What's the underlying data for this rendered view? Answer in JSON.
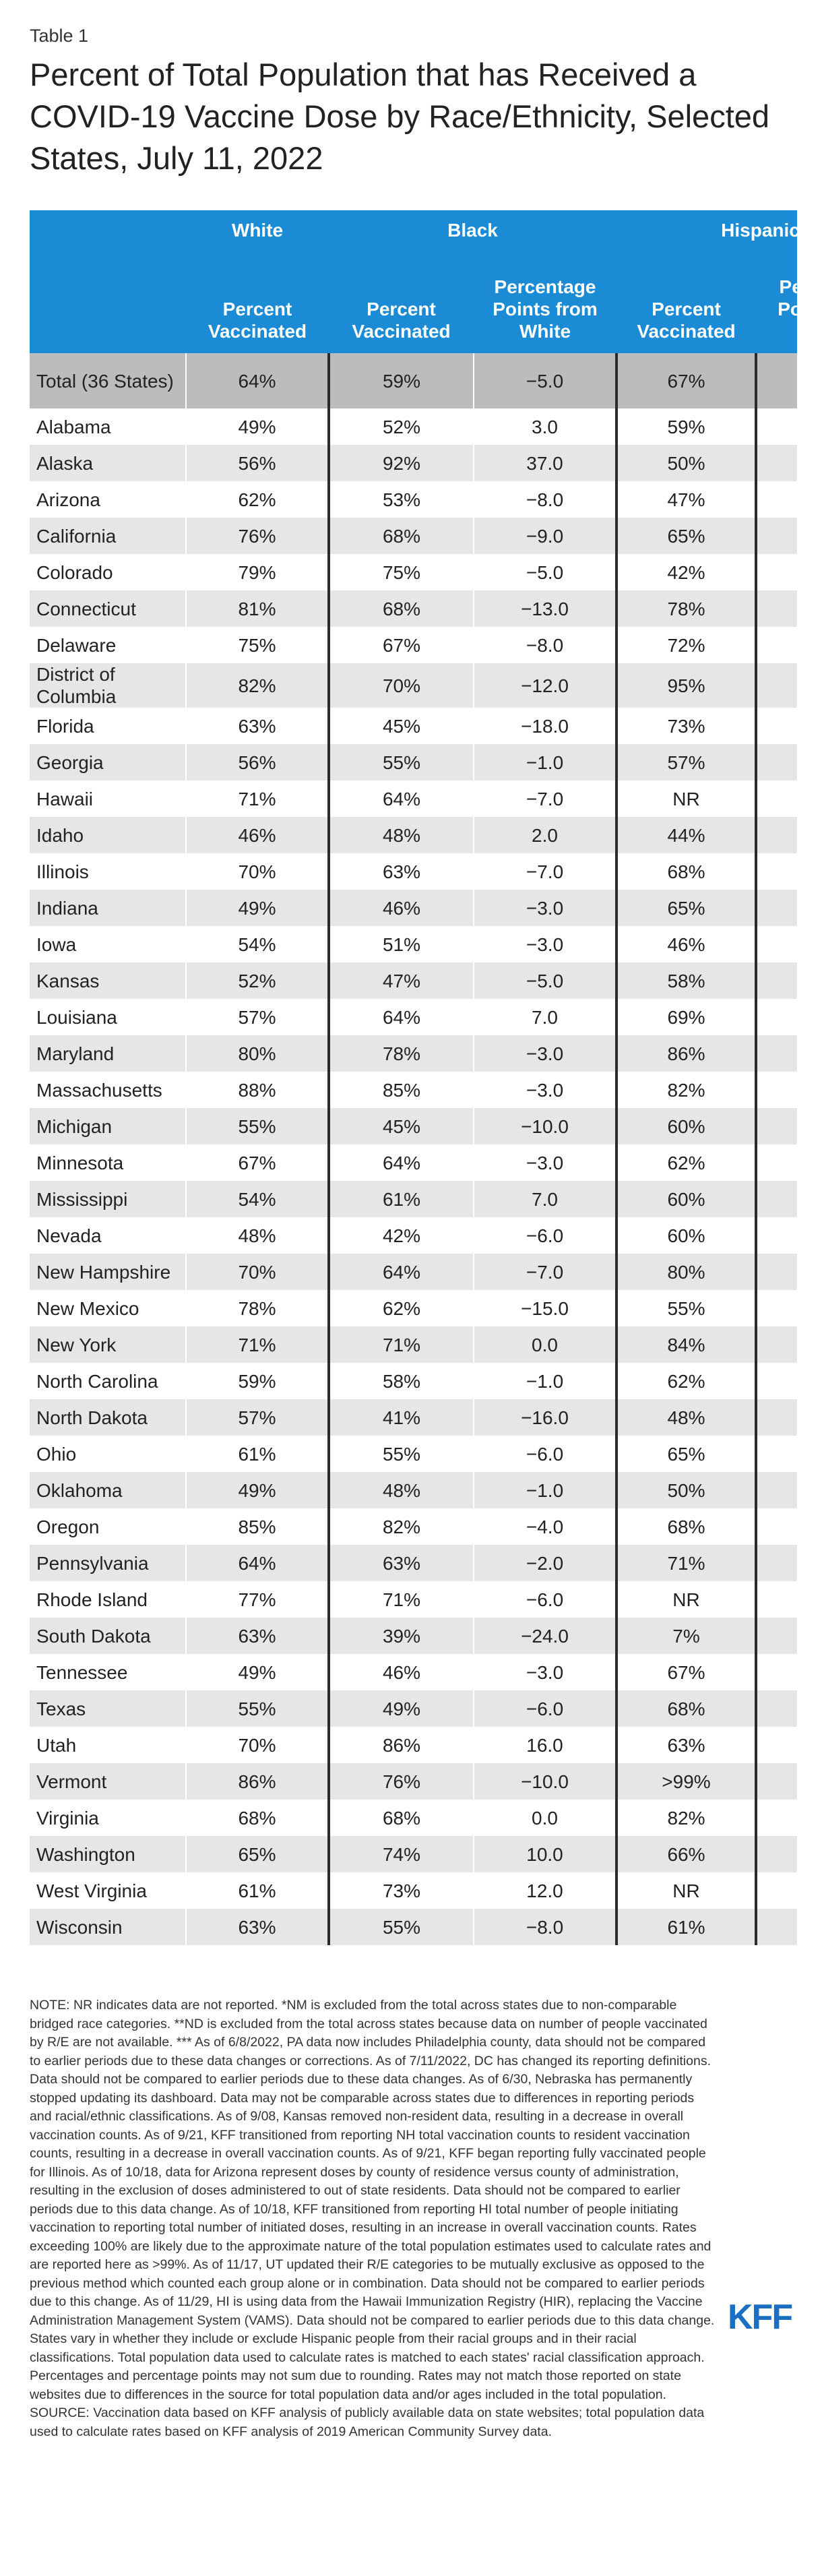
{
  "header": {
    "label": "Table 1",
    "title": "Percent of Total Population that has Received a COVID-19 Vaccine Dose by Race/Ethnicity, Selected States, July 11, 2022"
  },
  "table": {
    "groups": [
      "White",
      "Black",
      "Hispanic"
    ],
    "columns": [
      "Percent Vaccinated",
      "Percent Vaccinated",
      "Percentage Points from White",
      "Percent Vaccinated",
      "Percentage Points from White"
    ],
    "rows": [
      [
        "Total (36 States)",
        "64%",
        "59%",
        "−5.0",
        "67%"
      ],
      [
        "Alabama",
        "49%",
        "52%",
        "3.0",
        "59%"
      ],
      [
        "Alaska",
        "56%",
        "92%",
        "37.0",
        "50%"
      ],
      [
        "Arizona",
        "62%",
        "53%",
        "−8.0",
        "47%"
      ],
      [
        "California",
        "76%",
        "68%",
        "−9.0",
        "65%"
      ],
      [
        "Colorado",
        "79%",
        "75%",
        "−5.0",
        "42%"
      ],
      [
        "Connecticut",
        "81%",
        "68%",
        "−13.0",
        "78%"
      ],
      [
        "Delaware",
        "75%",
        "67%",
        "−8.0",
        "72%"
      ],
      [
        "District of Columbia",
        "82%",
        "70%",
        "−12.0",
        "95%"
      ],
      [
        "Florida",
        "63%",
        "45%",
        "−18.0",
        "73%"
      ],
      [
        "Georgia",
        "56%",
        "55%",
        "−1.0",
        "57%"
      ],
      [
        "Hawaii",
        "71%",
        "64%",
        "−7.0",
        "NR"
      ],
      [
        "Idaho",
        "46%",
        "48%",
        "2.0",
        "44%"
      ],
      [
        "Illinois",
        "70%",
        "63%",
        "−7.0",
        "68%"
      ],
      [
        "Indiana",
        "49%",
        "46%",
        "−3.0",
        "65%"
      ],
      [
        "Iowa",
        "54%",
        "51%",
        "−3.0",
        "46%"
      ],
      [
        "Kansas",
        "52%",
        "47%",
        "−5.0",
        "58%"
      ],
      [
        "Louisiana",
        "57%",
        "64%",
        "7.0",
        "69%"
      ],
      [
        "Maryland",
        "80%",
        "78%",
        "−3.0",
        "86%"
      ],
      [
        "Massachusetts",
        "88%",
        "85%",
        "−3.0",
        "82%"
      ],
      [
        "Michigan",
        "55%",
        "45%",
        "−10.0",
        "60%"
      ],
      [
        "Minnesota",
        "67%",
        "64%",
        "−3.0",
        "62%"
      ],
      [
        "Mississippi",
        "54%",
        "61%",
        "7.0",
        "60%"
      ],
      [
        "Nevada",
        "48%",
        "42%",
        "−6.0",
        "60%"
      ],
      [
        "New Hampshire",
        "70%",
        "64%",
        "−7.0",
        "80%"
      ],
      [
        "New Mexico",
        "78%",
        "62%",
        "−15.0",
        "55%"
      ],
      [
        "New York",
        "71%",
        "71%",
        "0.0",
        "84%"
      ],
      [
        "North Carolina",
        "59%",
        "58%",
        "−1.0",
        "62%"
      ],
      [
        "North Dakota",
        "57%",
        "41%",
        "−16.0",
        "48%"
      ],
      [
        "Ohio",
        "61%",
        "55%",
        "−6.0",
        "65%"
      ],
      [
        "Oklahoma",
        "49%",
        "48%",
        "−1.0",
        "50%"
      ],
      [
        "Oregon",
        "85%",
        "82%",
        "−4.0",
        "68%"
      ],
      [
        "Pennsylvania",
        "64%",
        "63%",
        "−2.0",
        "71%"
      ],
      [
        "Rhode Island",
        "77%",
        "71%",
        "−6.0",
        "NR"
      ],
      [
        "South Dakota",
        "63%",
        "39%",
        "−24.0",
        "7%"
      ],
      [
        "Tennessee",
        "49%",
        "46%",
        "−3.0",
        "67%"
      ],
      [
        "Texas",
        "55%",
        "49%",
        "−6.0",
        "68%"
      ],
      [
        "Utah",
        "70%",
        "86%",
        "16.0",
        "63%"
      ],
      [
        "Vermont",
        "86%",
        "76%",
        "−10.0",
        ">99%"
      ],
      [
        "Virginia",
        "68%",
        "68%",
        "0.0",
        "82%"
      ],
      [
        "Washington",
        "65%",
        "74%",
        "10.0",
        "66%"
      ],
      [
        "West Virginia",
        "61%",
        "73%",
        "12.0",
        "NR"
      ],
      [
        "Wisconsin",
        "63%",
        "55%",
        "−8.0",
        "61%"
      ]
    ]
  },
  "notes": {
    "note": "NOTE: NR indicates data are not reported. *NM is excluded from the total across states due to non-comparable bridged race categories. **ND is excluded from the total across states because data on number of people vaccinated by R/E are not available. *** As of 6/8/2022, PA data now includes Philadelphia county, data should not be compared to earlier periods due to these data changes or corrections. As of 7/11/2022, DC has changed its reporting definitions. Data should not be compared to earlier periods due to these data changes. As of 6/30, Nebraska has permanently stopped updating its dashboard. Data may not be comparable across states due to differences in reporting periods and racial/ethnic classifications. As of 9/08, Kansas removed non-resident data, resulting in a decrease in overall vaccination counts. As of 9/21, KFF transitioned from reporting NH total vaccination counts to resident vaccination counts, resulting in a decrease in overall vaccination counts. As of 9/21, KFF began reporting fully vaccinated people for Illinois. As of 10/18, data for Arizona represent doses by county of residence versus county of administration, resulting in the exclusion of doses administered to out of state residents. Data should not be compared to earlier periods due to this data change. As of 10/18, KFF transitioned from reporting HI total number of people initiating vaccination to reporting total number of initiated doses, resulting in an increase in overall vaccination counts. Rates exceeding 100% are likely due to the approximate nature of the total population estimates used to calculate rates and are reported here as >99%. As of 11/17, UT updated their R/E categories to be mutually exclusive as opposed to the previous method which counted each group alone or in combination. Data should not be compared to earlier periods due to this change. As of 11/29, HI is using data from the Hawaii Immunization Registry (HIR), replacing the Vaccine Administration Management System (VAMS). Data should not be compared to earlier periods due to this data change. States vary in whether they include or exclude Hispanic people from their racial groups and in their racial classifications. Total population data used to calculate rates is matched to each states' racial classification approach. Percentages and percentage points may not sum due to rounding. Rates may not match those reported on state websites due to differences in the source for total population data and/or ages included in the total population.",
    "source": "SOURCE: Vaccination data based on KFF analysis of publicly available data on state websites; total population data used to calculate rates based on KFF analysis of 2019 American Community Survey data."
  },
  "logo": "KFF"
}
